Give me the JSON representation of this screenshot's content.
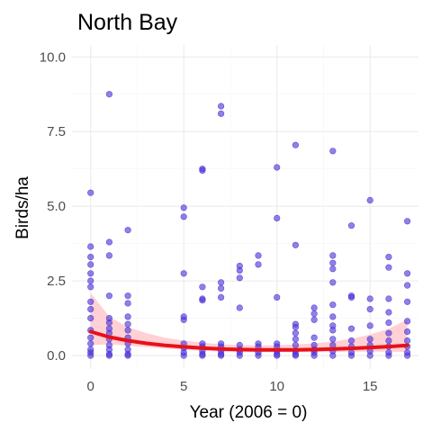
{
  "chart_data": {
    "type": "scatter",
    "title": "North Bay",
    "xlabel": "Year (2006 = 0)",
    "ylabel": "Birds/ha",
    "xlim": [
      -1,
      17.6
    ],
    "ylim": [
      -0.45,
      10.4
    ],
    "x_ticks": [
      0,
      5,
      10,
      15
    ],
    "x_tick_labels": [
      "0",
      "5",
      "10",
      "15"
    ],
    "y_ticks": [
      0,
      2.5,
      5,
      7.5,
      10
    ],
    "y_tick_labels": [
      "0.0",
      "2.5",
      "5.0",
      "7.5",
      "10.0"
    ],
    "grid": true,
    "point_color": "#4a33d6",
    "fit_color": "#e8101a",
    "band_color": "#ffc0c6",
    "points": [
      {
        "x": 0,
        "y": 5.45
      },
      {
        "x": 0,
        "y": 3.65
      },
      {
        "x": 0,
        "y": 3.3
      },
      {
        "x": 0,
        "y": 3.05
      },
      {
        "x": 0,
        "y": 2.75
      },
      {
        "x": 0,
        "y": 2.5
      },
      {
        "x": 0,
        "y": 2.3
      },
      {
        "x": 0,
        "y": 1.8
      },
      {
        "x": 0,
        "y": 1.55
      },
      {
        "x": 0,
        "y": 1.25
      },
      {
        "x": 0,
        "y": 0.85
      },
      {
        "x": 0,
        "y": 0.6
      },
      {
        "x": 0,
        "y": 0.4
      },
      {
        "x": 0,
        "y": 0.2
      },
      {
        "x": 0,
        "y": 0.1
      },
      {
        "x": 0,
        "y": 0
      },
      {
        "x": 1,
        "y": 8.75
      },
      {
        "x": 1,
        "y": 3.8
      },
      {
        "x": 1,
        "y": 3.35
      },
      {
        "x": 1,
        "y": 2.0
      },
      {
        "x": 1,
        "y": 1.25
      },
      {
        "x": 1,
        "y": 1.1
      },
      {
        "x": 1,
        "y": 0.9
      },
      {
        "x": 1,
        "y": 0.75
      },
      {
        "x": 1,
        "y": 0.55
      },
      {
        "x": 1,
        "y": 0.35
      },
      {
        "x": 1,
        "y": 0.2
      },
      {
        "x": 1,
        "y": 0.05
      },
      {
        "x": 1,
        "y": 0
      },
      {
        "x": 2,
        "y": 4.2
      },
      {
        "x": 2,
        "y": 2.0
      },
      {
        "x": 2,
        "y": 1.75
      },
      {
        "x": 2,
        "y": 1.3
      },
      {
        "x": 2,
        "y": 1.05
      },
      {
        "x": 2,
        "y": 0.85
      },
      {
        "x": 2,
        "y": 0.6
      },
      {
        "x": 2,
        "y": 0.4
      },
      {
        "x": 2,
        "y": 0.2
      },
      {
        "x": 2,
        "y": 0.05
      },
      {
        "x": 2,
        "y": 0
      },
      {
        "x": 5,
        "y": 4.95
      },
      {
        "x": 5,
        "y": 4.65
      },
      {
        "x": 5,
        "y": 2.75
      },
      {
        "x": 5,
        "y": 1.3
      },
      {
        "x": 5,
        "y": 1.2
      },
      {
        "x": 5,
        "y": 0.4
      },
      {
        "x": 5,
        "y": 0.25
      },
      {
        "x": 5,
        "y": 0.1
      },
      {
        "x": 5,
        "y": 0
      },
      {
        "x": 6,
        "y": 6.25
      },
      {
        "x": 6,
        "y": 6.2
      },
      {
        "x": 6,
        "y": 2.3
      },
      {
        "x": 6,
        "y": 1.9
      },
      {
        "x": 6,
        "y": 1.85
      },
      {
        "x": 6,
        "y": 0.4
      },
      {
        "x": 6,
        "y": 0.3
      },
      {
        "x": 6,
        "y": 0.15
      },
      {
        "x": 6,
        "y": 0.05
      },
      {
        "x": 6,
        "y": 0
      },
      {
        "x": 7,
        "y": 8.35
      },
      {
        "x": 7,
        "y": 8.1
      },
      {
        "x": 7,
        "y": 2.45
      },
      {
        "x": 7,
        "y": 2.25
      },
      {
        "x": 7,
        "y": 1.95
      },
      {
        "x": 7,
        "y": 0.4
      },
      {
        "x": 7,
        "y": 0.3
      },
      {
        "x": 7,
        "y": 0.15
      },
      {
        "x": 7,
        "y": 0.05
      },
      {
        "x": 7,
        "y": 0
      },
      {
        "x": 8,
        "y": 3.0
      },
      {
        "x": 8,
        "y": 2.85
      },
      {
        "x": 8,
        "y": 2.6
      },
      {
        "x": 8,
        "y": 1.6
      },
      {
        "x": 8,
        "y": 0.35
      },
      {
        "x": 8,
        "y": 0.2
      },
      {
        "x": 8,
        "y": 0.1
      },
      {
        "x": 8,
        "y": 0
      },
      {
        "x": 9,
        "y": 3.35
      },
      {
        "x": 9,
        "y": 3.05
      },
      {
        "x": 9,
        "y": 0.4
      },
      {
        "x": 9,
        "y": 0.3
      },
      {
        "x": 9,
        "y": 0.1
      },
      {
        "x": 9,
        "y": 0
      },
      {
        "x": 10,
        "y": 6.3
      },
      {
        "x": 10,
        "y": 4.6
      },
      {
        "x": 10,
        "y": 1.95
      },
      {
        "x": 10,
        "y": 0.4
      },
      {
        "x": 10,
        "y": 0.3
      },
      {
        "x": 10,
        "y": 0.15
      },
      {
        "x": 10,
        "y": 0.05
      },
      {
        "x": 10,
        "y": 0
      },
      {
        "x": 11,
        "y": 7.05
      },
      {
        "x": 11,
        "y": 3.7
      },
      {
        "x": 11,
        "y": 1.05
      },
      {
        "x": 11,
        "y": 0.95
      },
      {
        "x": 11,
        "y": 0.75
      },
      {
        "x": 11,
        "y": 0.55
      },
      {
        "x": 11,
        "y": 0.35
      },
      {
        "x": 11,
        "y": 0.15
      },
      {
        "x": 11,
        "y": 0.05
      },
      {
        "x": 11,
        "y": 0
      },
      {
        "x": 12,
        "y": 1.6
      },
      {
        "x": 12,
        "y": 1.4
      },
      {
        "x": 12,
        "y": 1.2
      },
      {
        "x": 12,
        "y": 0.6
      },
      {
        "x": 12,
        "y": 0.35
      },
      {
        "x": 12,
        "y": 0.2
      },
      {
        "x": 12,
        "y": 0.1
      },
      {
        "x": 12,
        "y": 0
      },
      {
        "x": 13,
        "y": 6.85
      },
      {
        "x": 13,
        "y": 3.35
      },
      {
        "x": 13,
        "y": 3.1
      },
      {
        "x": 13,
        "y": 2.9
      },
      {
        "x": 13,
        "y": 2.45
      },
      {
        "x": 13,
        "y": 1.7
      },
      {
        "x": 13,
        "y": 1.3
      },
      {
        "x": 13,
        "y": 1.0
      },
      {
        "x": 13,
        "y": 0.85
      },
      {
        "x": 13,
        "y": 0.55
      },
      {
        "x": 13,
        "y": 0.35
      },
      {
        "x": 13,
        "y": 0.15
      },
      {
        "x": 13,
        "y": 0
      },
      {
        "x": 14,
        "y": 4.35
      },
      {
        "x": 14,
        "y": 2.0
      },
      {
        "x": 14,
        "y": 1.95
      },
      {
        "x": 14,
        "y": 0.9
      },
      {
        "x": 14,
        "y": 0.5
      },
      {
        "x": 14,
        "y": 0.3
      },
      {
        "x": 14,
        "y": 0.1
      },
      {
        "x": 14,
        "y": 0
      },
      {
        "x": 15,
        "y": 5.2
      },
      {
        "x": 15,
        "y": 1.9
      },
      {
        "x": 15,
        "y": 1.55
      },
      {
        "x": 15,
        "y": 1.0
      },
      {
        "x": 15,
        "y": 0.55
      },
      {
        "x": 15,
        "y": 0.35
      },
      {
        "x": 15,
        "y": 0.15
      },
      {
        "x": 15,
        "y": 0
      },
      {
        "x": 16,
        "y": 3.3
      },
      {
        "x": 16,
        "y": 2.95
      },
      {
        "x": 16,
        "y": 1.9
      },
      {
        "x": 16,
        "y": 1.45
      },
      {
        "x": 16,
        "y": 1.1
      },
      {
        "x": 16,
        "y": 0.75
      },
      {
        "x": 16,
        "y": 0.5
      },
      {
        "x": 16,
        "y": 0.3
      },
      {
        "x": 16,
        "y": 0.1
      },
      {
        "x": 16,
        "y": 0
      },
      {
        "x": 17,
        "y": 4.5
      },
      {
        "x": 17,
        "y": 2.75
      },
      {
        "x": 17,
        "y": 2.35
      },
      {
        "x": 17,
        "y": 1.8
      },
      {
        "x": 17,
        "y": 1.15
      },
      {
        "x": 17,
        "y": 0.8
      },
      {
        "x": 17,
        "y": 0.5
      },
      {
        "x": 17,
        "y": 0.3
      },
      {
        "x": 17,
        "y": 0.1
      },
      {
        "x": 17,
        "y": 0
      }
    ],
    "fit": {
      "x": [
        0,
        1,
        2,
        3,
        4,
        5,
        6,
        7,
        8,
        9,
        10,
        11,
        12,
        13,
        14,
        15,
        16,
        17
      ],
      "y": [
        0.8,
        0.62,
        0.5,
        0.41,
        0.34,
        0.29,
        0.25,
        0.22,
        0.2,
        0.19,
        0.19,
        0.19,
        0.2,
        0.22,
        0.24,
        0.27,
        0.3,
        0.34
      ],
      "lower": [
        0.35,
        0.38,
        0.33,
        0.28,
        0.23,
        0.19,
        0.16,
        0.13,
        0.12,
        0.11,
        0.11,
        0.11,
        0.12,
        0.12,
        0.13,
        0.13,
        0.13,
        0.12
      ],
      "upper": [
        2.1,
        1.3,
        0.95,
        0.75,
        0.6,
        0.5,
        0.43,
        0.38,
        0.35,
        0.34,
        0.35,
        0.37,
        0.41,
        0.47,
        0.56,
        0.7,
        0.9,
        1.2
      ]
    }
  }
}
